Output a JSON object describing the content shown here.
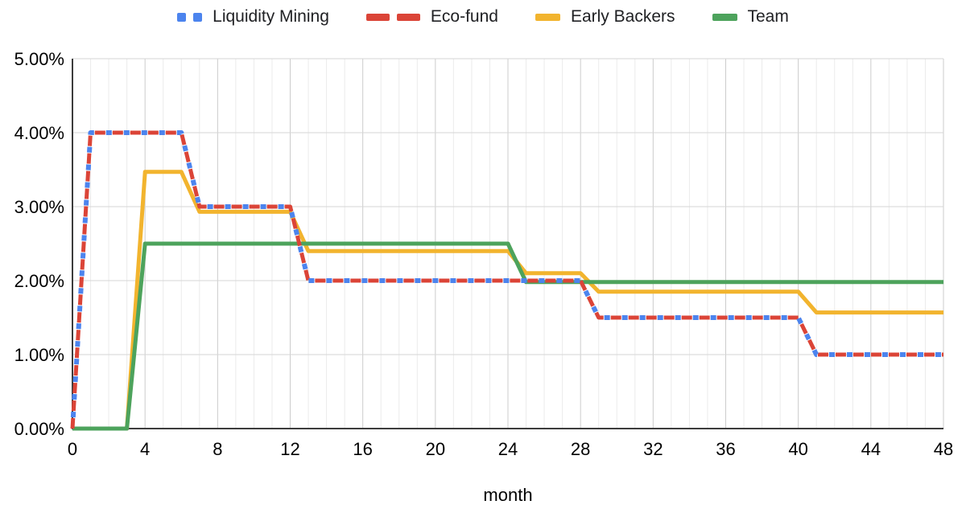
{
  "legend": {
    "items": [
      {
        "label": "Liquidity Mining",
        "color": "#4C84EE",
        "style": "dotted"
      },
      {
        "label": "Eco-fund",
        "color": "#DB4437",
        "style": "dashed"
      },
      {
        "label": "Early Backers",
        "color": "#F2B42E",
        "style": "solid"
      },
      {
        "label": "Team",
        "color": "#4DA35C",
        "style": "solid"
      }
    ]
  },
  "chart_data": {
    "type": "line",
    "title": "",
    "xlabel": "month",
    "ylabel": "",
    "xlim": [
      0,
      48
    ],
    "ylim": [
      0,
      5
    ],
    "x_major_ticks": [
      0,
      4,
      8,
      12,
      16,
      20,
      24,
      28,
      32,
      36,
      40,
      44,
      48
    ],
    "x_minor_step": 1,
    "y_ticks": [
      0,
      1,
      2,
      3,
      4,
      5
    ],
    "y_tick_labels": [
      "0.00%",
      "1.00%",
      "2.00%",
      "3.00%",
      "4.00%",
      "5.00%"
    ],
    "grid": true,
    "legend_position": "top",
    "colors": {
      "axis": "#3c3c3c",
      "grid_major": "#cccccc",
      "grid_minor": "#ebebeb",
      "grid_horizontal": "#d6d6d6",
      "tick_label": "#000000"
    },
    "series": [
      {
        "name": "Liquidity Mining",
        "color": "#4C84EE",
        "dash": "dotted",
        "points": [
          [
            0,
            0
          ],
          [
            1,
            4.0
          ],
          [
            6,
            4.0
          ],
          [
            7,
            3.0
          ],
          [
            12,
            3.0
          ],
          [
            13,
            2.0
          ],
          [
            28,
            2.0
          ],
          [
            29,
            1.5
          ],
          [
            40,
            1.5
          ],
          [
            41,
            1.0
          ],
          [
            48,
            1.0
          ]
        ]
      },
      {
        "name": "Eco-fund",
        "color": "#DB4437",
        "dash": "dashed",
        "points": [
          [
            0,
            0
          ],
          [
            1,
            4.0
          ],
          [
            6,
            4.0
          ],
          [
            7,
            3.0
          ],
          [
            12,
            3.0
          ],
          [
            13,
            2.0
          ],
          [
            28,
            2.0
          ],
          [
            29,
            1.5
          ],
          [
            40,
            1.5
          ],
          [
            41,
            1.0
          ],
          [
            48,
            1.0
          ]
        ]
      },
      {
        "name": "Early Backers",
        "color": "#F2B42E",
        "dash": "solid",
        "points": [
          [
            0,
            0
          ],
          [
            3,
            0
          ],
          [
            4,
            3.47
          ],
          [
            6,
            3.47
          ],
          [
            7,
            2.93
          ],
          [
            12,
            2.93
          ],
          [
            13,
            2.4
          ],
          [
            24,
            2.4
          ],
          [
            25,
            2.1
          ],
          [
            28,
            2.1
          ],
          [
            29,
            1.85
          ],
          [
            40,
            1.85
          ],
          [
            41,
            1.57
          ],
          [
            48,
            1.57
          ]
        ]
      },
      {
        "name": "Team",
        "color": "#4DA35C",
        "dash": "solid",
        "points": [
          [
            0,
            0
          ],
          [
            3,
            0
          ],
          [
            4,
            2.5
          ],
          [
            24,
            2.5
          ],
          [
            25,
            1.98
          ],
          [
            48,
            1.98
          ]
        ]
      }
    ],
    "draw_order": [
      2,
      3,
      1,
      0
    ]
  }
}
